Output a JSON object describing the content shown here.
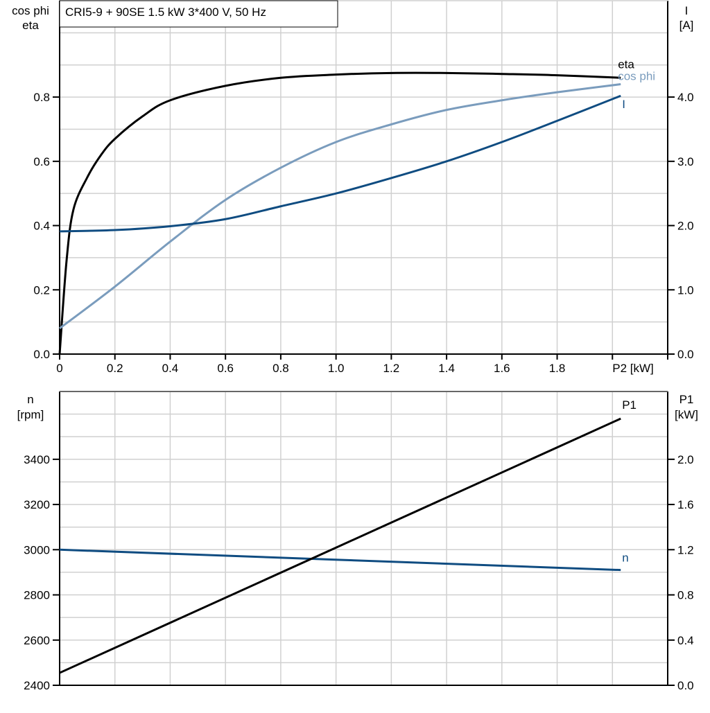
{
  "title": "CRI5-9 + 90SE   1.5 kW   3*400 V, 50 Hz",
  "colors": {
    "eta": "#000000",
    "cos_phi": "#7a9cbd",
    "I": "#0f4c81",
    "n": "#0f4c81",
    "P1": "#000000",
    "grid": "#d0d0d0"
  },
  "chart_data": [
    {
      "type": "line",
      "xlabel": "P2 [kW]",
      "xlim": [
        0,
        2.2
      ],
      "xticks": [
        "0",
        "0.2",
        "0.4",
        "0.6",
        "0.8",
        "1.0",
        "1.2",
        "1.4",
        "1.6",
        "1.8"
      ],
      "ylabel_left": [
        "cos phi",
        "eta"
      ],
      "ylim_left": [
        0,
        1.1
      ],
      "yticks_left": [
        "0.0",
        "0.2",
        "0.4",
        "0.6",
        "0.8"
      ],
      "ylabel_right": [
        "I",
        "[A]"
      ],
      "ylim_right": [
        0,
        5.5
      ],
      "yticks_right": [
        "0.0",
        "1.0",
        "2.0",
        "3.0",
        "4.0"
      ],
      "grid": true,
      "series": [
        {
          "name": "eta",
          "axis": "left",
          "x": [
            0,
            0.025,
            0.05,
            0.1,
            0.15,
            0.2,
            0.3,
            0.4,
            0.6,
            0.8,
            1.0,
            1.2,
            1.4,
            1.6,
            1.8,
            2.03
          ],
          "y": [
            0,
            0.29,
            0.45,
            0.55,
            0.62,
            0.67,
            0.74,
            0.79,
            0.835,
            0.86,
            0.87,
            0.875,
            0.875,
            0.872,
            0.868,
            0.86
          ]
        },
        {
          "name": "cos phi",
          "axis": "left",
          "x": [
            0,
            0.2,
            0.4,
            0.6,
            0.8,
            1.0,
            1.2,
            1.4,
            1.6,
            1.8,
            2.03
          ],
          "y": [
            0.08,
            0.21,
            0.35,
            0.48,
            0.58,
            0.66,
            0.715,
            0.76,
            0.79,
            0.815,
            0.84
          ]
        },
        {
          "name": "I",
          "axis": "right",
          "x": [
            0,
            0.2,
            0.4,
            0.6,
            0.8,
            1.0,
            1.2,
            1.4,
            1.6,
            1.8,
            2.03
          ],
          "y": [
            1.91,
            1.93,
            1.99,
            2.1,
            2.3,
            2.5,
            2.74,
            3.0,
            3.3,
            3.63,
            4.02
          ]
        }
      ]
    },
    {
      "type": "line",
      "xlim": [
        0,
        2.2
      ],
      "ylabel_left": [
        "n",
        "[rpm]"
      ],
      "ylim_left": [
        2400,
        3700
      ],
      "yticks_left": [
        "2400",
        "2600",
        "2800",
        "3000",
        "3200",
        "3400"
      ],
      "ylabel_right": [
        "P1",
        "[kW]"
      ],
      "ylim_right": [
        0,
        2.6
      ],
      "yticks_right": [
        "0.0",
        "0.4",
        "0.8",
        "1.2",
        "1.6",
        "2.0"
      ],
      "grid": true,
      "series": [
        {
          "name": "n",
          "axis": "left",
          "x": [
            0,
            2.03
          ],
          "y": [
            3000,
            2910
          ]
        },
        {
          "name": "P1",
          "axis": "right",
          "x": [
            0,
            2.03
          ],
          "y": [
            0.11,
            2.36
          ]
        }
      ]
    }
  ]
}
